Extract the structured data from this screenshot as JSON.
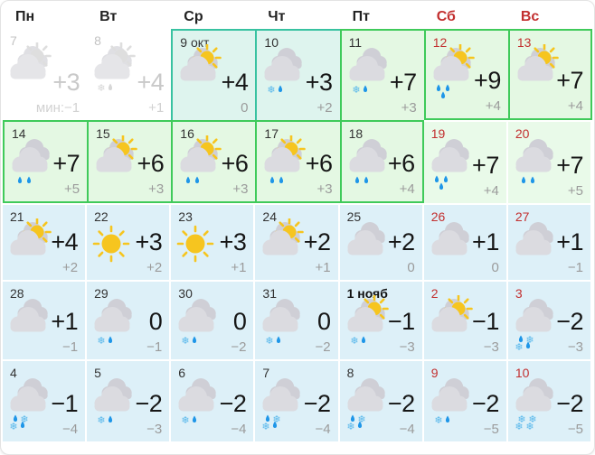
{
  "colors": {
    "teal_border": "#38c2a1",
    "teal_bg": "#def4ee",
    "green_border": "#3fca5a",
    "green_bg": "#e4f8e3",
    "green_plain_bg": "#e9fae9",
    "blue_bg": "#ddf0f8",
    "weekend_red": "#c22f2f",
    "sun": "#f6c51f",
    "rain_drop": "#1e96e8",
    "snowflake": "#57b7eb"
  },
  "weekdays": [
    {
      "label": "Пн",
      "weekend": false
    },
    {
      "label": "Вт",
      "weekend": false
    },
    {
      "label": "Ср",
      "weekend": false
    },
    {
      "label": "Чт",
      "weekend": false
    },
    {
      "label": "Пт",
      "weekend": false
    },
    {
      "label": "Сб",
      "weekend": true
    },
    {
      "label": "Вс",
      "weekend": true
    }
  ],
  "cells": [
    {
      "day": "7",
      "temp": "+3",
      "min": "мин:−1",
      "icon": "sun-cloud",
      "variant": "past"
    },
    {
      "day": "8",
      "temp": "+4",
      "min": "+1",
      "icon": "sun-cloud-snowrain",
      "variant": "past"
    },
    {
      "day": "9 окт",
      "temp": "+4",
      "min": "0",
      "icon": "sun-cloud",
      "variant": "teal",
      "box": "tl"
    },
    {
      "day": "10",
      "temp": "+3",
      "min": "+2",
      "icon": "cloud-snowrain",
      "variant": "teal",
      "box": "tl"
    },
    {
      "day": "11",
      "temp": "+7",
      "min": "+3",
      "icon": "cloud-snowrain",
      "variant": "green",
      "box": "tl"
    },
    {
      "day": "12",
      "temp": "+9",
      "min": "+4",
      "icon": "sun-cloud-rain3",
      "variant": "green",
      "box": "tlb",
      "red": true
    },
    {
      "day": "13",
      "temp": "+7",
      "min": "+4",
      "icon": "sun-cloud",
      "variant": "green",
      "box": "tlbr",
      "red": true
    },
    {
      "day": "14",
      "temp": "+7",
      "min": "+5",
      "icon": "cloud-rain2",
      "variant": "green",
      "box": "tlb"
    },
    {
      "day": "15",
      "temp": "+6",
      "min": "+3",
      "icon": "sun-cloud",
      "variant": "green",
      "box": "tlb"
    },
    {
      "day": "16",
      "temp": "+6",
      "min": "+3",
      "icon": "sun-cloud-rain2",
      "variant": "green",
      "box": "tlb"
    },
    {
      "day": "17",
      "temp": "+6",
      "min": "+3",
      "icon": "sun-cloud-rain2",
      "variant": "green",
      "box": "tlb"
    },
    {
      "day": "18",
      "temp": "+6",
      "min": "+4",
      "icon": "cloud-rain2",
      "variant": "green",
      "box": "tlbr"
    },
    {
      "day": "19",
      "temp": "+7",
      "min": "+4",
      "icon": "cloud-rain3",
      "variant": "greenp",
      "red": true
    },
    {
      "day": "20",
      "temp": "+7",
      "min": "+5",
      "icon": "cloud-rain2",
      "variant": "greenp",
      "red": true
    },
    {
      "day": "21",
      "temp": "+4",
      "min": "+2",
      "icon": "sun-cloud",
      "variant": "blue"
    },
    {
      "day": "22",
      "temp": "+3",
      "min": "+2",
      "icon": "sun",
      "variant": "blue"
    },
    {
      "day": "23",
      "temp": "+3",
      "min": "+1",
      "icon": "sun",
      "variant": "blue"
    },
    {
      "day": "24",
      "temp": "+2",
      "min": "+1",
      "icon": "sun-cloud",
      "variant": "blue"
    },
    {
      "day": "25",
      "temp": "+2",
      "min": "0",
      "icon": "cloud",
      "variant": "blue"
    },
    {
      "day": "26",
      "temp": "+1",
      "min": "0",
      "icon": "cloud",
      "variant": "blue",
      "red": true
    },
    {
      "day": "27",
      "temp": "+1",
      "min": "−1",
      "icon": "cloud",
      "variant": "blue",
      "red": true
    },
    {
      "day": "28",
      "temp": "+1",
      "min": "−1",
      "icon": "cloud",
      "variant": "blue"
    },
    {
      "day": "29",
      "temp": "0",
      "min": "−1",
      "icon": "cloud-snowrain",
      "variant": "blue"
    },
    {
      "day": "30",
      "temp": "0",
      "min": "−2",
      "icon": "cloud-snowrain",
      "variant": "blue"
    },
    {
      "day": "31",
      "temp": "0",
      "min": "−2",
      "icon": "cloud-snowrain",
      "variant": "blue"
    },
    {
      "day": "1 нояб",
      "temp": "−1",
      "min": "−3",
      "icon": "sun-cloud-snowrain",
      "variant": "blue",
      "bold": true
    },
    {
      "day": "2",
      "temp": "−1",
      "min": "−3",
      "icon": "sun-cloud",
      "variant": "blue",
      "red": true
    },
    {
      "day": "3",
      "temp": "−2",
      "min": "−3",
      "icon": "cloud-mix",
      "variant": "blue",
      "red": true
    },
    {
      "day": "4",
      "temp": "−1",
      "min": "−4",
      "icon": "cloud-mix",
      "variant": "blue"
    },
    {
      "day": "5",
      "temp": "−2",
      "min": "−3",
      "icon": "cloud-snowrain",
      "variant": "blue"
    },
    {
      "day": "6",
      "temp": "−2",
      "min": "−4",
      "icon": "cloud-snowrain",
      "variant": "blue"
    },
    {
      "day": "7",
      "temp": "−2",
      "min": "−4",
      "icon": "cloud-mix",
      "variant": "blue"
    },
    {
      "day": "8",
      "temp": "−2",
      "min": "−4",
      "icon": "cloud-mix",
      "variant": "blue"
    },
    {
      "day": "9",
      "temp": "−2",
      "min": "−5",
      "icon": "cloud-snowrain",
      "variant": "blue",
      "red": true
    },
    {
      "day": "10",
      "temp": "−2",
      "min": "−5",
      "icon": "cloud-snow4",
      "variant": "blue",
      "red": true
    }
  ]
}
